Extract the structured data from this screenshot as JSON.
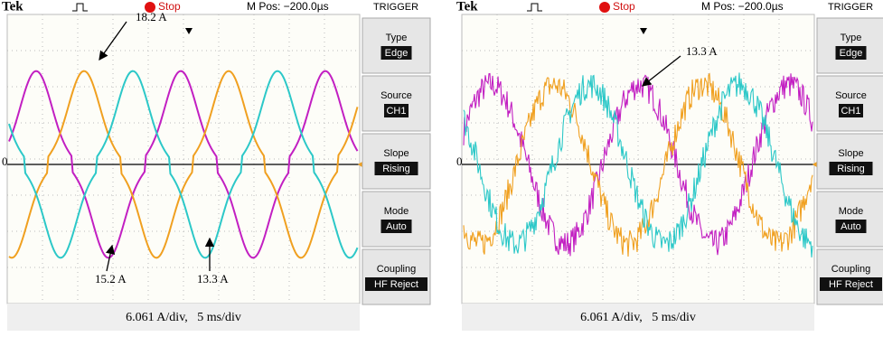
{
  "panels": [
    {
      "header": {
        "brand": "Tek",
        "status": "Stop",
        "position": "M Pos: −200.0µs",
        "menu_title": "TRIGGER"
      },
      "menu": [
        {
          "label": "Type",
          "value": "Edge"
        },
        {
          "label": "Source",
          "value": "CH1"
        },
        {
          "label": "Slope",
          "value": "Rising"
        },
        {
          "label": "Mode",
          "value": "Auto"
        },
        {
          "label": "Coupling",
          "value": "HF Reject"
        }
      ],
      "zero_label": "0",
      "annotations": [
        "18.2 A",
        "15.2 A",
        "13.3 A"
      ],
      "footer": "6.061 A/div,   5 ms/div"
    },
    {
      "header": {
        "brand": "Tek",
        "status": "Stop",
        "position": "M Pos: −200.0µs",
        "menu_title": "TRIGGER"
      },
      "menu": [
        {
          "label": "Type",
          "value": "Edge"
        },
        {
          "label": "Source",
          "value": "CH1"
        },
        {
          "label": "Slope",
          "value": "Rising"
        },
        {
          "label": "Mode",
          "value": "Auto"
        },
        {
          "label": "Coupling",
          "value": "HF Reject"
        }
      ],
      "zero_label": "0",
      "annotations": [
        "13.3 A"
      ],
      "footer": "6.061 A/div,   5 ms/div"
    }
  ]
}
